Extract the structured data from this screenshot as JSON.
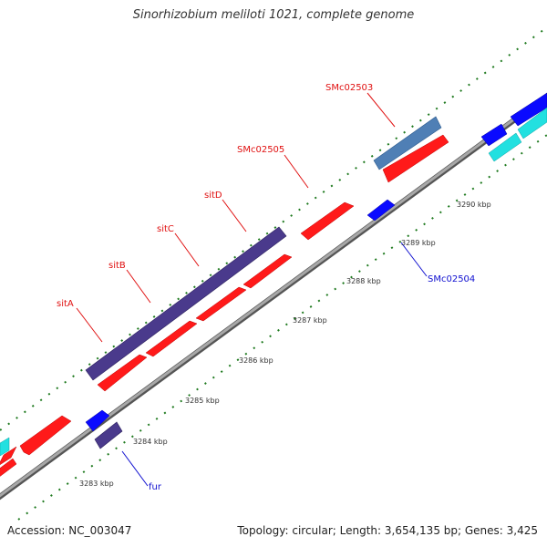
{
  "title": "Sinorhizobium meliloti 1021, complete genome",
  "accession": "Accession: NC_003047",
  "summary": "Topology: circular; Length: 3,654,135 bp; Genes: 3,425",
  "colors": {
    "backbone": "#8a8a8a",
    "forward_gene": "#ff1a1a",
    "reverse_gene": "#0a0aff",
    "operon": "#4a3a8c",
    "highlight_gene": "#4f7fb5",
    "cyan_gene": "#22e0e0",
    "dots": "#1f7a1f",
    "label_red": "#e01010",
    "label_blue": "#1010d0"
  },
  "ticks": [
    "3283 kbp",
    "3284 kbp",
    "3285 kbp",
    "3286 kbp",
    "3287 kbp",
    "3288 kbp",
    "3289 kbp",
    "3290 kbp"
  ],
  "gene_labels": [
    {
      "name": "sitA",
      "color": "red"
    },
    {
      "name": "sitB",
      "color": "red"
    },
    {
      "name": "sitC",
      "color": "red"
    },
    {
      "name": "sitD",
      "color": "red"
    },
    {
      "name": "SMc02505",
      "color": "red"
    },
    {
      "name": "SMc02503",
      "color": "red"
    },
    {
      "name": "SMc02504",
      "color": "blue"
    },
    {
      "name": "fur",
      "color": "blue"
    }
  ]
}
